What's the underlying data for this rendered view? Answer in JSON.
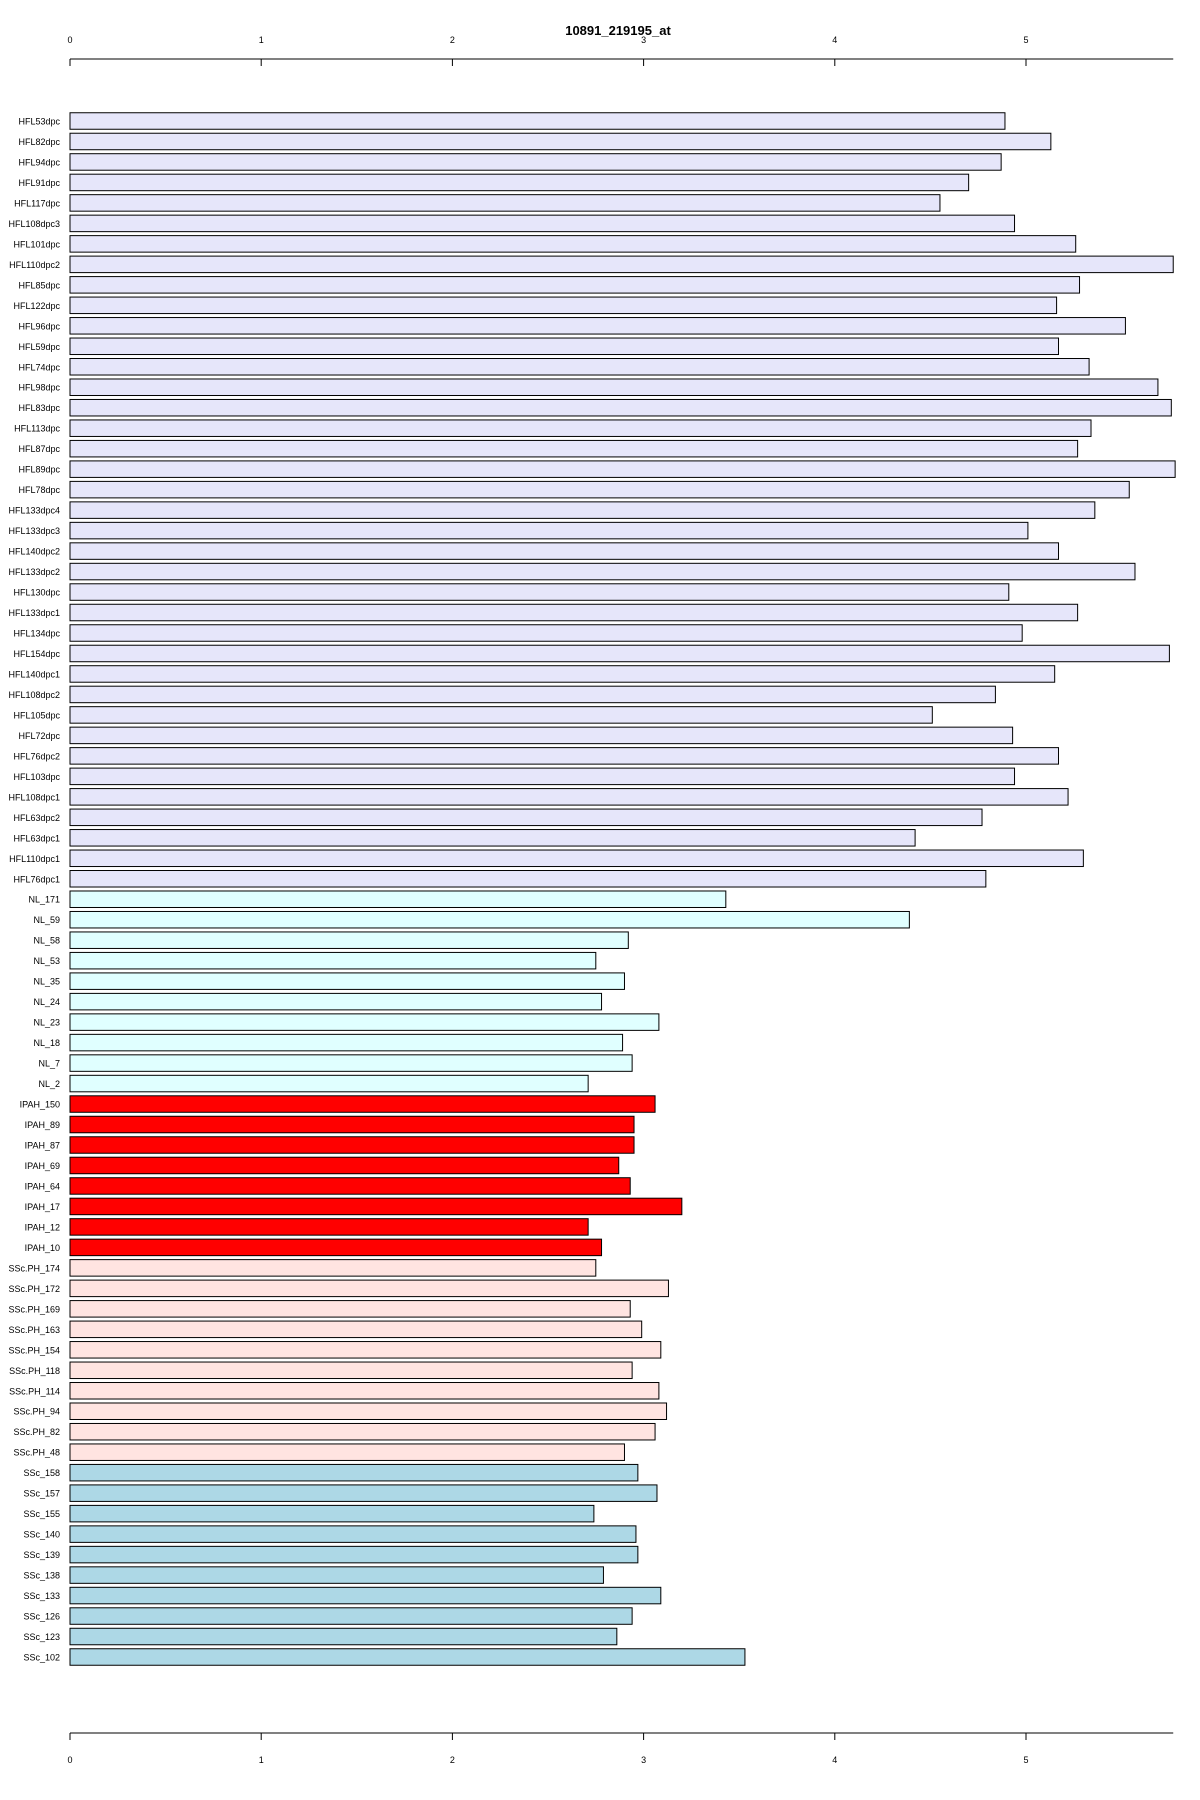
{
  "chart_data": {
    "type": "bar",
    "orientation": "horizontal",
    "title": "10891_219195_at",
    "xlabel": "",
    "ylabel": "",
    "xlim": [
      0,
      5.77
    ],
    "x_ticks": [
      "0",
      "1",
      "2",
      "3",
      "4",
      "5"
    ],
    "grid": false,
    "legend": "none",
    "groups": [
      {
        "color": "#e6e6fa",
        "categories": [
          "HFL53dpc",
          "HFL82dpc",
          "HFL94dpc",
          "HFL91dpc",
          "HFL117dpc",
          "HFL108dpc3",
          "HFL101dpc",
          "HFL110dpc2",
          "HFL85dpc",
          "HFL122dpc",
          "HFL96dpc",
          "HFL59dpc",
          "HFL74dpc",
          "HFL98dpc",
          "HFL83dpc",
          "HFL113dpc",
          "HFL87dpc",
          "HFL89dpc",
          "HFL78dpc",
          "HFL133dpc4",
          "HFL133dpc3",
          "HFL140dpc2",
          "HFL133dpc2",
          "HFL130dpc",
          "HFL133dpc1",
          "HFL134dpc",
          "HFL154dpc",
          "HFL140dpc1",
          "HFL108dpc2",
          "HFL105dpc",
          "HFL72dpc",
          "HFL76dpc2",
          "HFL103dpc",
          "HFL108dpc1",
          "HFL63dpc2",
          "HFL63dpc1",
          "HFL110dpc1",
          "HFL76dpc1"
        ],
        "values": [
          4.89,
          5.13,
          4.87,
          4.7,
          4.55,
          4.94,
          5.26,
          5.77,
          5.28,
          5.16,
          5.52,
          5.17,
          5.33,
          5.69,
          5.76,
          5.34,
          5.27,
          5.78,
          5.54,
          5.36,
          5.01,
          5.17,
          5.57,
          4.91,
          5.27,
          4.98,
          5.75,
          5.15,
          4.84,
          4.51,
          4.93,
          5.17,
          4.94,
          5.22,
          4.77,
          4.42,
          5.3,
          4.79
        ]
      },
      {
        "color": "#e0ffff",
        "categories": [
          "NL_171",
          "NL_59",
          "NL_58",
          "NL_53",
          "NL_35",
          "NL_24",
          "NL_23",
          "NL_18",
          "NL_7",
          "NL_2"
        ],
        "values": [
          3.43,
          4.39,
          2.92,
          2.75,
          2.9,
          2.78,
          3.08,
          2.89,
          2.94,
          2.71
        ]
      },
      {
        "color": "#ff0000",
        "categories": [
          "IPAH_150",
          "IPAH_89",
          "IPAH_87",
          "IPAH_69",
          "IPAH_64",
          "IPAH_17",
          "IPAH_12",
          "IPAH_10"
        ],
        "values": [
          3.06,
          2.95,
          2.95,
          2.87,
          2.93,
          3.2,
          2.71,
          2.78
        ]
      },
      {
        "color": "#ffe4e1",
        "categories": [
          "SSc.PH_174",
          "SSc.PH_172",
          "SSc.PH_169",
          "SSc.PH_163",
          "SSc.PH_154",
          "SSc.PH_118",
          "SSc.PH_114",
          "SSc.PH_94",
          "SSc.PH_82",
          "SSc.PH_48"
        ],
        "values": [
          2.75,
          3.13,
          2.93,
          2.99,
          3.09,
          2.94,
          3.08,
          3.12,
          3.06,
          2.9
        ]
      },
      {
        "color": "#add8e6",
        "categories": [
          "SSc_158",
          "SSc_157",
          "SSc_155",
          "SSc_140",
          "SSc_139",
          "SSc_138",
          "SSc_133",
          "SSc_126",
          "SSc_123",
          "SSc_102"
        ],
        "values": [
          2.97,
          3.07,
          2.74,
          2.96,
          2.97,
          2.79,
          3.09,
          2.94,
          2.86,
          3.53
        ]
      }
    ]
  }
}
